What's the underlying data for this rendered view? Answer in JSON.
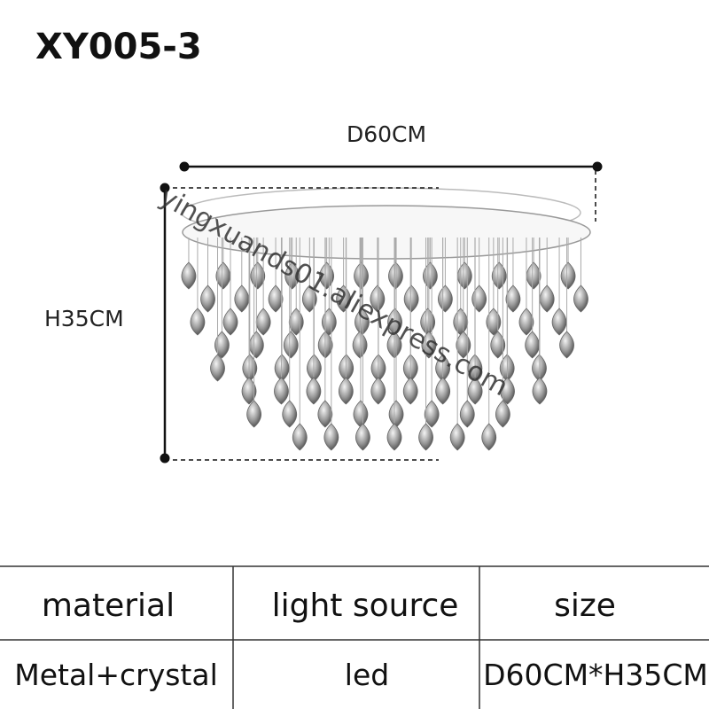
{
  "header": {
    "title": "XY005-3"
  },
  "diagram": {
    "width_label": "D60CM",
    "height_label": "H35CM",
    "watermark": "yingxuands01.aliexpress.com"
  },
  "table": {
    "headers": [
      "material",
      "light source",
      "size"
    ],
    "rows": [
      [
        "Metal+crystal",
        "led",
        "D60CM*H35CM"
      ]
    ]
  }
}
